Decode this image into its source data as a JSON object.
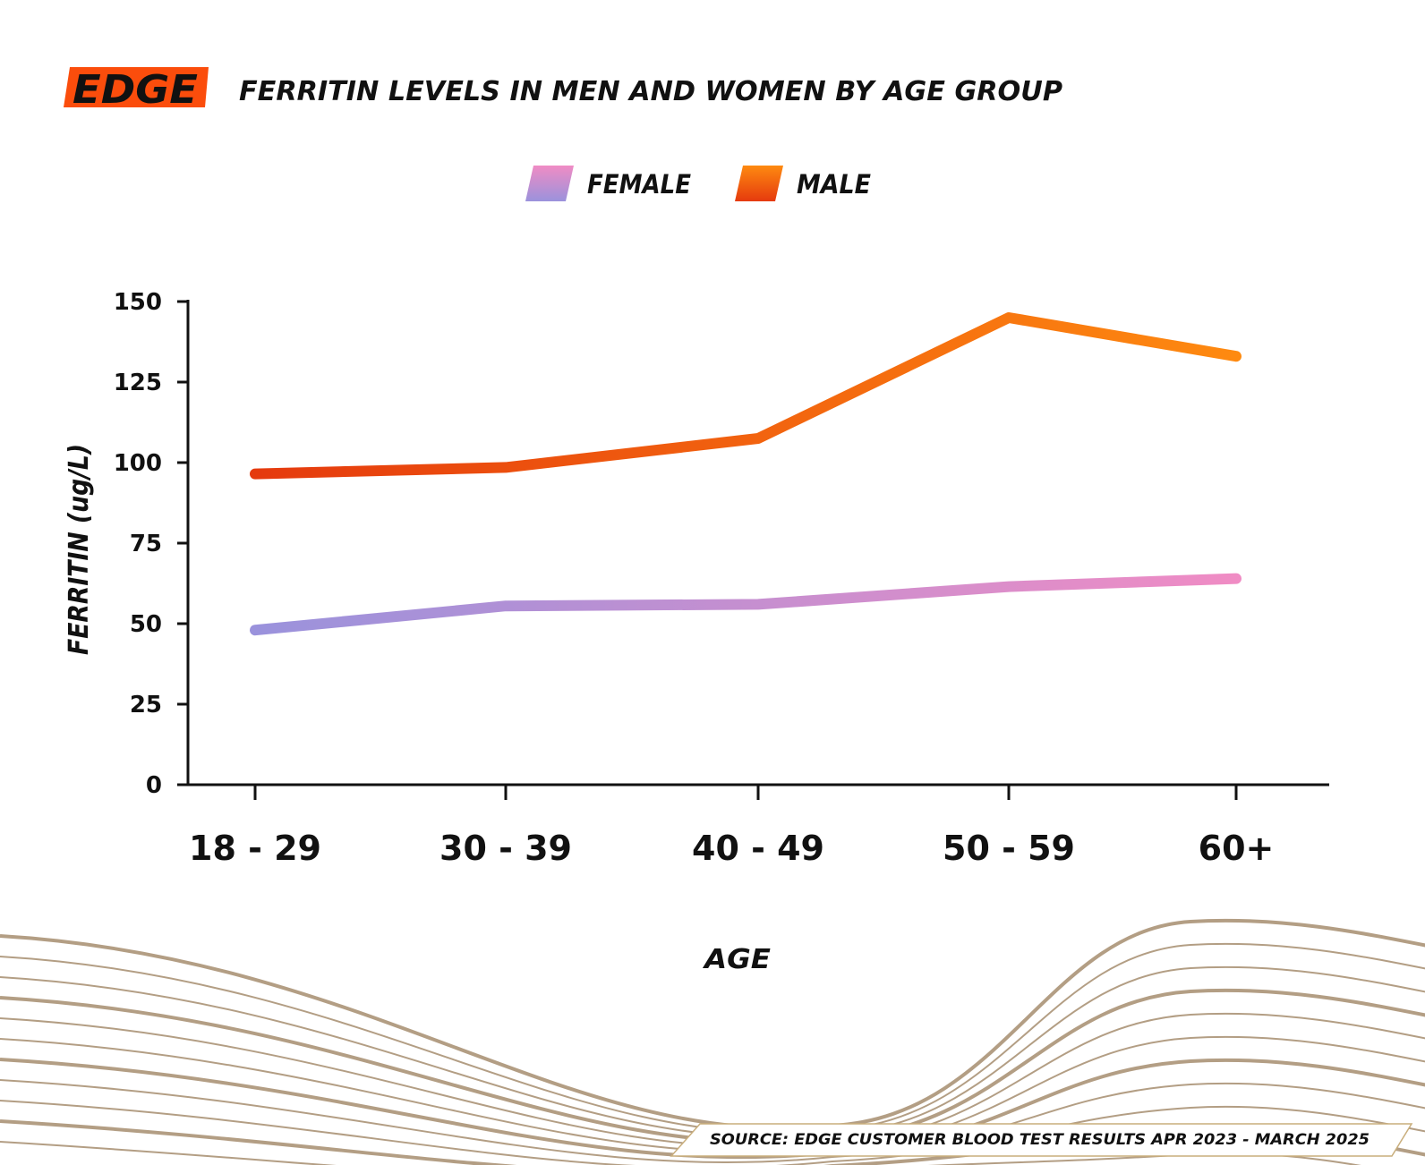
{
  "header": {
    "brand": "EDGE",
    "title": "FERRITIN LEVELS IN MEN AND WOMEN BY AGE GROUP"
  },
  "legend": {
    "items": [
      {
        "label": "FEMALE"
      },
      {
        "label": "MALE"
      }
    ]
  },
  "footer": {
    "source": "SOURCE: EDGE CUSTOMER BLOOD TEST RESULTS APR 2023 - MARCH 2025"
  },
  "colors": {
    "brand": "#fb4d0c",
    "female_start": "#9a92dc",
    "female_end": "#f08cc4",
    "male_start": "#e53a0e",
    "male_end": "#fe8a10",
    "axis": "#111111",
    "waves": "#b39e84"
  },
  "chart_data": {
    "type": "line",
    "categories": [
      "18 - 29",
      "30 - 39",
      "40 - 49",
      "50 - 59",
      "60+"
    ],
    "series": [
      {
        "name": "FEMALE",
        "values": [
          48,
          55.5,
          56,
          61.5,
          64
        ]
      },
      {
        "name": "MALE",
        "values": [
          96.5,
          98.5,
          107.5,
          145,
          133
        ]
      }
    ],
    "title": "FERRITIN LEVELS IN MEN AND WOMEN BY AGE GROUP",
    "xlabel": "AGE",
    "ylabel": "FERRITIN (ug/L)",
    "ylim": [
      0,
      150
    ],
    "yticks": [
      0,
      25,
      50,
      75,
      100,
      125,
      150
    ],
    "grid": false,
    "legend_position": "top-center"
  }
}
